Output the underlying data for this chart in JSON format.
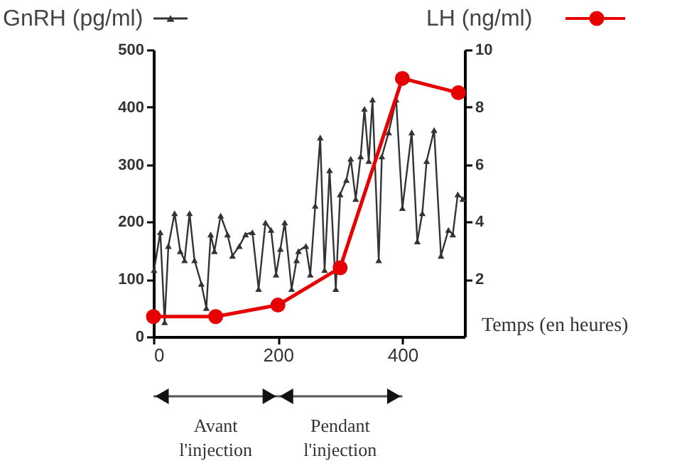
{
  "chart_data": {
    "type": "line",
    "xlabel": "Temps (en heures)",
    "xlim": [
      0,
      500
    ],
    "xticks": [
      0,
      200,
      400
    ],
    "ylim": [
      0,
      500
    ],
    "yticks": [
      0,
      100,
      200,
      300,
      400,
      500
    ],
    "y2lim": [
      0,
      10
    ],
    "y2ticks": [
      2,
      4,
      6,
      8,
      10
    ],
    "grid": false,
    "legend": "top",
    "series": [
      {
        "name": "GnRH (pg/ml)",
        "color": "#333333",
        "marker": "triangle",
        "axis": "y",
        "x": [
          1,
          11,
          18,
          24,
          34,
          43,
          50,
          58,
          66,
          77,
          85,
          92,
          98,
          108,
          119,
          127,
          138,
          148,
          159,
          169,
          180,
          189,
          197,
          204,
          211,
          222,
          230,
          233,
          245,
          252,
          260,
          268,
          275,
          283,
          293,
          300,
          310,
          317,
          325,
          333,
          339,
          346,
          352,
          362,
          367,
          378,
          390,
          400,
          415,
          424,
          432,
          439,
          451,
          462,
          474,
          481,
          489,
          497
        ],
        "values": [
          116,
          182,
          25,
          158,
          215,
          149,
          133,
          215,
          133,
          92,
          50,
          178,
          149,
          211,
          178,
          141,
          158,
          178,
          182,
          83,
          199,
          186,
          108,
          153,
          199,
          83,
          133,
          149,
          158,
          108,
          228,
          347,
          116,
          290,
          83,
          248,
          273,
          310,
          240,
          314,
          397,
          306,
          413,
          133,
          314,
          356,
          413,
          224,
          356,
          166,
          215,
          306,
          360,
          141,
          186,
          178,
          248,
          240
        ]
      },
      {
        "name": "LH (ng/ml)",
        "color": "#e60000",
        "marker": "circle",
        "axis": "y2",
        "x": [
          0,
          100,
          200,
          300,
          400,
          490
        ],
        "values": [
          0.7,
          0.7,
          1.1,
          2.4,
          9.0,
          8.5
        ]
      }
    ],
    "annotations": [
      "Avant\nl'injection",
      "Pendant\nl'injection"
    ]
  }
}
